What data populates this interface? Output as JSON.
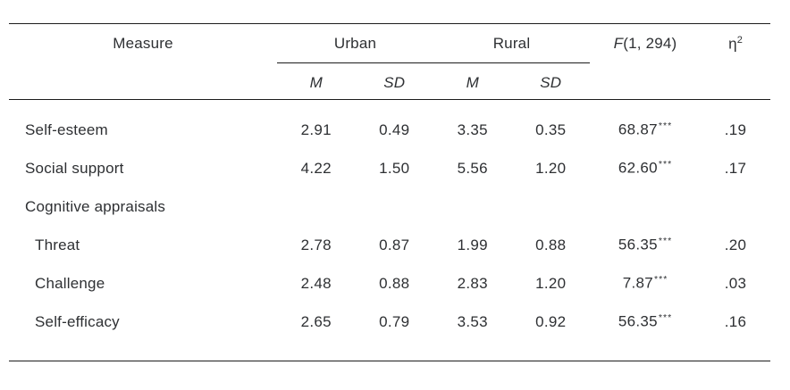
{
  "table": {
    "header": {
      "measure": "Measure",
      "urban": "Urban",
      "rural": "Rural",
      "m": "M",
      "sd": "SD",
      "f_stat_italic": "F",
      "f_stat_args": "(1, 294)",
      "eta_base": "η",
      "eta_sup": "2"
    },
    "rows": [
      {
        "label": "Self-esteem",
        "urban_m": "2.91",
        "urban_sd": "0.49",
        "rural_m": "3.35",
        "rural_sd": "0.35",
        "f": "68.87",
        "f_sig": "***",
        "eta": ".19"
      },
      {
        "label": "Social support",
        "urban_m": "4.22",
        "urban_sd": "1.50",
        "rural_m": "5.56",
        "rural_sd": "1.20",
        "f": "62.60",
        "f_sig": "***",
        "eta": ".17"
      },
      {
        "label": "Cognitive appraisals",
        "urban_m": "",
        "urban_sd": "",
        "rural_m": "",
        "rural_sd": "",
        "f": "",
        "f_sig": "",
        "eta": ""
      },
      {
        "label": "Threat",
        "urban_m": "2.78",
        "urban_sd": "0.87",
        "rural_m": "1.99",
        "rural_sd": "0.88",
        "f": "56.35",
        "f_sig": "***",
        "eta": ".20"
      },
      {
        "label": "Challenge",
        "urban_m": "2.48",
        "urban_sd": "0.88",
        "rural_m": "2.83",
        "rural_sd": "1.20",
        "f": "7.87",
        "f_sig": "***",
        "eta": ".03"
      },
      {
        "label": "Self-efficacy",
        "urban_m": "2.65",
        "urban_sd": "0.79",
        "rural_m": "3.53",
        "rural_sd": "0.92",
        "f": "56.35",
        "f_sig": "***",
        "eta": ".16"
      }
    ]
  },
  "colors": {
    "text": "#2e3033",
    "rule": "#1c1c1c",
    "background": "#ffffff"
  }
}
